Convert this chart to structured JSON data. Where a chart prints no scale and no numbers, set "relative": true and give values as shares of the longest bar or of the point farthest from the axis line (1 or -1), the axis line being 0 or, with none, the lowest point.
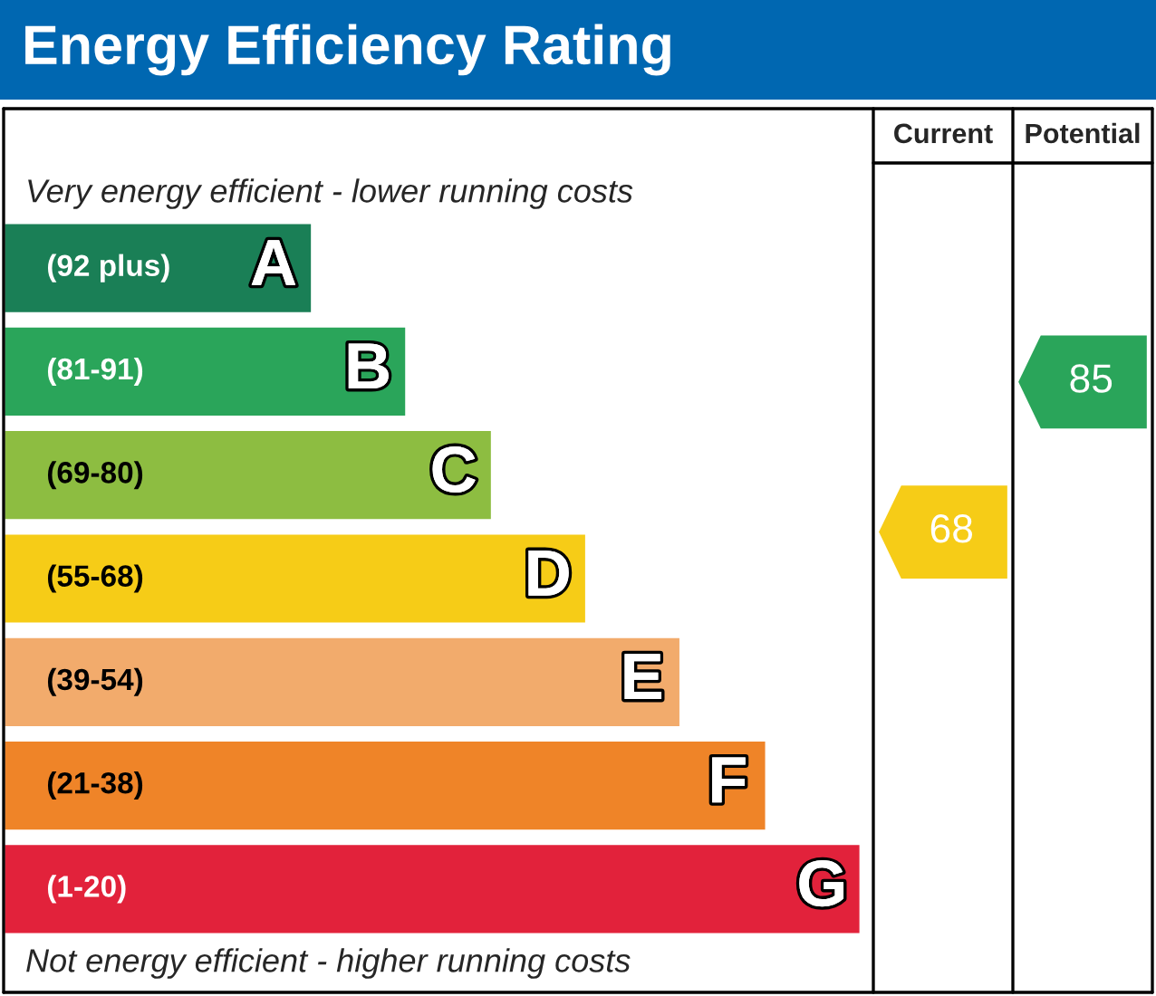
{
  "chart_data": {
    "type": "bar",
    "orientation": "horizontal",
    "relative": true,
    "title": "Energy Efficiency Rating",
    "categories": [
      "A",
      "B",
      "C",
      "D",
      "E",
      "F",
      "G"
    ],
    "values": [
      0.36,
      0.47,
      0.57,
      0.68,
      0.79,
      0.89,
      1
    ],
    "colors": [
      "#1a7f56",
      "#2aa55a",
      "#8dbd41",
      "#f6cc17",
      "#f2ab6c",
      "#ef8428",
      "#e2223b"
    ],
    "annotations": [
      "Very energy efficient - lower running costs",
      "Not energy efficient - higher running costs",
      "Current",
      "Potential",
      "(92 plus)",
      "(81-91)",
      "(69-80)",
      "(55-68)",
      "(39-54)",
      "(21-38)",
      "(1-20)",
      "68",
      "85"
    ]
  }
}
